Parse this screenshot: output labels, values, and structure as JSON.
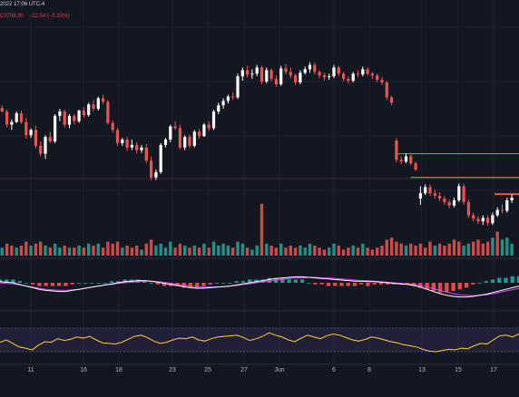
{
  "header": {
    "datetime": "2022 17:06 UTC-4",
    "price": "C3759.90",
    "change": "−12.54 (−0.33%)"
  },
  "colors": {
    "background": "#131722",
    "up": "#ffffff",
    "down": "#ef5350",
    "volume_up": "#26a69a",
    "volume_down": "#ef5350",
    "level_line": "#4caf50",
    "macd_line": "#ffffff",
    "signal_line": "#e040fb",
    "rsi_line": "#f9d423",
    "rsi_band": "#7e57c2"
  },
  "date_axis": [
    "11",
    "16",
    "18",
    "23",
    "25",
    "27",
    "Jun",
    "6",
    "8",
    "13",
    "15",
    "17"
  ],
  "chart_data": {
    "type": "candlestick",
    "title": "",
    "xlabel": "",
    "ylabel": "",
    "price_candles": [
      [
        3.0,
        3.9,
        2.6,
        3.7
      ],
      [
        3.7,
        4.0,
        3.2,
        3.3
      ],
      [
        3.3,
        3.5,
        1.5,
        1.8
      ],
      [
        1.8,
        2.4,
        1.2,
        2.1
      ],
      [
        2.1,
        3.3,
        2.0,
        3.1
      ],
      [
        3.1,
        3.4,
        1.9,
        2.1
      ],
      [
        2.1,
        2.6,
        0.2,
        0.6
      ],
      [
        0.6,
        1.4,
        0.3,
        1.2
      ],
      [
        1.2,
        1.7,
        -0.9,
        -0.6
      ],
      [
        -0.6,
        -0.1,
        -1.8,
        -1.5
      ],
      [
        -1.5,
        0.6,
        -2.1,
        0.4
      ],
      [
        0.4,
        1.0,
        -0.3,
        -0.1
      ],
      [
        -0.1,
        3.0,
        -0.3,
        2.8
      ],
      [
        2.8,
        3.6,
        2.2,
        3.3
      ],
      [
        3.3,
        3.5,
        1.5,
        1.8
      ],
      [
        1.8,
        3.0,
        1.4,
        2.8
      ],
      [
        2.8,
        3.0,
        1.8,
        2.2
      ],
      [
        2.2,
        3.5,
        2.0,
        3.4
      ],
      [
        3.4,
        3.8,
        2.6,
        2.9
      ],
      [
        2.9,
        4.3,
        2.7,
        4.1
      ],
      [
        4.1,
        4.6,
        3.3,
        3.6
      ],
      [
        3.6,
        5.0,
        3.4,
        4.8
      ],
      [
        4.8,
        5.2,
        4.1,
        4.4
      ],
      [
        4.4,
        4.6,
        1.8,
        2.0
      ],
      [
        2.0,
        2.3,
        0.9,
        1.2
      ],
      [
        1.2,
        1.5,
        -0.6,
        -0.3
      ],
      [
        -0.3,
        0.3,
        -0.6,
        0.1
      ],
      [
        0.1,
        0.4,
        -1.2,
        -0.8
      ],
      [
        -0.8,
        0.1,
        -1.1,
        -0.5
      ],
      [
        -0.5,
        -0.2,
        -1.5,
        -1.1
      ],
      [
        -1.1,
        -0.5,
        -1.4,
        -0.8
      ],
      [
        -0.8,
        -0.4,
        -2.6,
        -2.3
      ],
      [
        -2.3,
        -1.8,
        -4.5,
        -4.2
      ],
      [
        -4.2,
        -3.3,
        -4.5,
        -3.6
      ],
      [
        -3.6,
        -0.3,
        -3.8,
        -0.5
      ],
      [
        -0.5,
        0.3,
        -0.8,
        0.1
      ],
      [
        0.1,
        1.8,
        -0.2,
        1.6
      ],
      [
        1.6,
        2.2,
        1.2,
        1.4
      ],
      [
        1.4,
        1.8,
        -1.0,
        -0.8
      ],
      [
        -0.8,
        0.6,
        -1.1,
        0.4
      ],
      [
        0.4,
        0.7,
        -0.9,
        -0.6
      ],
      [
        -0.6,
        1.2,
        -0.8,
        1.0
      ],
      [
        1.0,
        1.3,
        0.2,
        0.5
      ],
      [
        0.5,
        2.0,
        0.4,
        1.8
      ],
      [
        1.8,
        2.2,
        1.1,
        1.4
      ],
      [
        1.4,
        3.5,
        1.2,
        3.3
      ],
      [
        3.3,
        4.3,
        3.0,
        4.0
      ],
      [
        4.0,
        4.8,
        3.6,
        4.5
      ],
      [
        4.5,
        5.2,
        4.2,
        5.0
      ],
      [
        5.0,
        5.5,
        4.6,
        4.9
      ],
      [
        4.9,
        7.6,
        4.7,
        7.3
      ],
      [
        7.3,
        8.3,
        6.8,
        8.0
      ],
      [
        8.0,
        8.5,
        7.2,
        7.5
      ],
      [
        7.5,
        8.1,
        7.0,
        7.6
      ],
      [
        7.6,
        8.6,
        7.3,
        8.3
      ],
      [
        8.3,
        8.5,
        6.4,
        6.7
      ],
      [
        6.7,
        8.3,
        6.5,
        8.0
      ],
      [
        8.0,
        8.2,
        6.7,
        7.0
      ],
      [
        7.0,
        7.4,
        6.1,
        6.4
      ],
      [
        6.4,
        8.5,
        6.2,
        8.2
      ],
      [
        8.2,
        8.7,
        7.5,
        7.8
      ],
      [
        7.8,
        8.3,
        7.1,
        7.4
      ],
      [
        7.4,
        7.6,
        6.3,
        6.6
      ],
      [
        6.6,
        8.0,
        6.4,
        7.7
      ],
      [
        7.7,
        8.4,
        7.5,
        8.1
      ],
      [
        8.1,
        8.9,
        7.7,
        8.6
      ],
      [
        8.6,
        8.9,
        7.5,
        7.8
      ],
      [
        7.8,
        8.0,
        7.1,
        7.4
      ],
      [
        7.4,
        7.7,
        6.8,
        7.2
      ],
      [
        7.2,
        7.6,
        6.9,
        7.3
      ],
      [
        7.3,
        8.6,
        7.1,
        8.3
      ],
      [
        8.3,
        8.5,
        7.3,
        7.6
      ],
      [
        7.6,
        7.8,
        6.7,
        7.0
      ],
      [
        7.0,
        7.3,
        6.5,
        6.8
      ],
      [
        6.8,
        7.8,
        6.6,
        7.6
      ],
      [
        7.6,
        8.0,
        7.2,
        7.5
      ],
      [
        7.5,
        8.4,
        7.3,
        8.1
      ],
      [
        8.1,
        8.3,
        7.4,
        7.6
      ],
      [
        7.6,
        7.8,
        7.0,
        7.4
      ],
      [
        7.4,
        7.6,
        6.6,
        6.9
      ],
      [
        6.9,
        7.2,
        6.3,
        6.6
      ],
      [
        6.6,
        6.8,
        4.6,
        4.9
      ],
      [
        4.9,
        5.1,
        4.0,
        4.3
      ],
      [
        0.0,
        0.3,
        -2.5,
        -2.2
      ],
      [
        -2.2,
        -1.8,
        -2.7,
        -2.4
      ],
      [
        -2.4,
        -1.5,
        -2.6,
        -1.8
      ],
      [
        -1.8,
        -1.5,
        -2.8,
        -2.6
      ],
      [
        -2.6,
        -2.4,
        -3.5,
        -3.3
      ],
      [
        -6.6,
        -5.2,
        -7.3,
        -6.0
      ],
      [
        -6.0,
        -5.0,
        -6.2,
        -5.3
      ],
      [
        -5.3,
        -5.0,
        -6.3,
        -6.0
      ],
      [
        -6.0,
        -5.6,
        -6.6,
        -6.3
      ],
      [
        -6.3,
        -5.9,
        -6.9,
        -6.6
      ],
      [
        -6.6,
        -6.3,
        -7.3,
        -7.0
      ],
      [
        -7.0,
        -6.7,
        -7.7,
        -7.4
      ],
      [
        -7.4,
        -6.5,
        -7.6,
        -6.8
      ],
      [
        -6.8,
        -4.9,
        -7.0,
        -5.2
      ],
      [
        -5.2,
        -4.9,
        -7.3,
        -7.0
      ],
      [
        -7.0,
        -6.7,
        -8.8,
        -8.5
      ],
      [
        -8.5,
        -8.2,
        -9.2,
        -8.9
      ],
      [
        -8.9,
        -8.6,
        -9.5,
        -9.2
      ],
      [
        -9.2,
        -8.5,
        -9.6,
        -8.8
      ],
      [
        -8.8,
        -8.5,
        -9.7,
        -9.4
      ],
      [
        -9.4,
        -8.2,
        -9.6,
        -8.5
      ],
      [
        -8.5,
        -7.6,
        -8.7,
        -7.9
      ],
      [
        -7.9,
        -7.3,
        -8.3,
        -8.0
      ],
      [
        -8.0,
        -6.5,
        -8.2,
        -6.8
      ],
      [
        -6.8,
        -6.1,
        -7.1,
        -6.5
      ]
    ],
    "levels": [
      {
        "from_bar": 83,
        "to_bar": 107,
        "price": -1.5
      },
      {
        "from_bar": 86,
        "to_bar": 107,
        "price": -4.2
      }
    ],
    "volume": [
      [
        0.3,
        1
      ],
      [
        0.4,
        1
      ],
      [
        0.6,
        0
      ],
      [
        0.5,
        0
      ],
      [
        0.4,
        1
      ],
      [
        0.5,
        0
      ],
      [
        0.7,
        0
      ],
      [
        0.5,
        1
      ],
      [
        0.6,
        0
      ],
      [
        0.7,
        0
      ],
      [
        0.5,
        1
      ],
      [
        0.4,
        0
      ],
      [
        0.6,
        1
      ],
      [
        0.4,
        1
      ],
      [
        0.5,
        0
      ],
      [
        0.4,
        1
      ],
      [
        0.4,
        0
      ],
      [
        0.5,
        1
      ],
      [
        0.4,
        0
      ],
      [
        0.6,
        1
      ],
      [
        0.5,
        0
      ],
      [
        0.6,
        1
      ],
      [
        0.4,
        0
      ],
      [
        0.7,
        0
      ],
      [
        0.6,
        0
      ],
      [
        0.7,
        0
      ],
      [
        0.4,
        1
      ],
      [
        0.5,
        0
      ],
      [
        0.4,
        0
      ],
      [
        0.5,
        0
      ],
      [
        0.3,
        1
      ],
      [
        0.6,
        0
      ],
      [
        0.8,
        0
      ],
      [
        0.5,
        1
      ],
      [
        0.6,
        1
      ],
      [
        0.4,
        1
      ],
      [
        0.7,
        1
      ],
      [
        0.4,
        0
      ],
      [
        0.6,
        0
      ],
      [
        0.5,
        1
      ],
      [
        0.4,
        0
      ],
      [
        0.5,
        1
      ],
      [
        0.4,
        0
      ],
      [
        0.6,
        1
      ],
      [
        0.4,
        0
      ],
      [
        0.7,
        1
      ],
      [
        0.5,
        1
      ],
      [
        0.6,
        1
      ],
      [
        0.5,
        1
      ],
      [
        0.4,
        0
      ],
      [
        0.7,
        1
      ],
      [
        0.6,
        1
      ],
      [
        0.4,
        0
      ],
      [
        0.3,
        1
      ],
      [
        0.5,
        1
      ],
      [
        2.6,
        0
      ],
      [
        0.6,
        1
      ],
      [
        0.5,
        0
      ],
      [
        0.4,
        0
      ],
      [
        0.6,
        1
      ],
      [
        0.4,
        0
      ],
      [
        0.5,
        0
      ],
      [
        0.4,
        0
      ],
      [
        0.5,
        1
      ],
      [
        0.4,
        1
      ],
      [
        0.6,
        1
      ],
      [
        0.5,
        0
      ],
      [
        0.4,
        0
      ],
      [
        0.3,
        0
      ],
      [
        0.4,
        1
      ],
      [
        0.6,
        1
      ],
      [
        0.5,
        0
      ],
      [
        0.3,
        0
      ],
      [
        0.4,
        0
      ],
      [
        0.5,
        1
      ],
      [
        0.4,
        0
      ],
      [
        0.6,
        1
      ],
      [
        0.4,
        0
      ],
      [
        0.3,
        0
      ],
      [
        0.4,
        0
      ],
      [
        0.5,
        0
      ],
      [
        0.8,
        0
      ],
      [
        0.9,
        0
      ],
      [
        0.7,
        0
      ],
      [
        0.6,
        0
      ],
      [
        0.5,
        1
      ],
      [
        0.6,
        0
      ],
      [
        0.5,
        0
      ],
      [
        0.6,
        0
      ],
      [
        0.4,
        0
      ],
      [
        0.7,
        0
      ],
      [
        0.5,
        1
      ],
      [
        0.6,
        0
      ],
      [
        0.5,
        0
      ],
      [
        0.6,
        0
      ],
      [
        0.8,
        0
      ],
      [
        0.7,
        0
      ],
      [
        0.5,
        1
      ],
      [
        0.6,
        1
      ],
      [
        0.7,
        0
      ],
      [
        0.8,
        0
      ],
      [
        0.6,
        0
      ],
      [
        0.7,
        0
      ],
      [
        0.9,
        1
      ],
      [
        1.2,
        0
      ],
      [
        0.8,
        1
      ],
      [
        0.9,
        1
      ],
      [
        0.6,
        1
      ]
    ],
    "macd": [
      0.2,
      0.1,
      0.0,
      -0.3,
      -0.6,
      -0.9,
      -1.2,
      -1.4,
      -1.5,
      -1.6,
      -1.6,
      -1.4,
      -1.2,
      -1.0,
      -0.8,
      -0.6,
      -0.4,
      -0.2,
      0.0,
      0.2,
      0.3,
      0.4,
      0.4,
      0.3,
      0.1,
      -0.1,
      -0.3,
      -0.5,
      -0.7,
      -0.9,
      -1.0,
      -1.0,
      -0.9,
      -0.8,
      -0.7,
      -0.6,
      -0.4,
      -0.2,
      0.0,
      0.2,
      0.4,
      0.6,
      0.8,
      0.9,
      1.0,
      1.1,
      1.1,
      1.0,
      0.9,
      0.8,
      0.7,
      0.6,
      0.5,
      0.4,
      0.3,
      0.3,
      0.2,
      0.2,
      0.1,
      0.0,
      -0.1,
      -0.2,
      -0.3,
      -0.5,
      -0.8,
      -1.2,
      -1.6,
      -2.0,
      -2.3,
      -2.5,
      -2.6,
      -2.6,
      -2.5,
      -2.3,
      -2.1,
      -1.8,
      -1.5,
      -1.2,
      -0.9,
      -0.6
    ],
    "signal": [
      0.0,
      -0.1,
      -0.2,
      -0.4,
      -0.6,
      -0.8,
      -1.0,
      -1.2,
      -1.3,
      -1.4,
      -1.4,
      -1.3,
      -1.2,
      -1.0,
      -0.8,
      -0.6,
      -0.4,
      -0.3,
      -0.1,
      0.0,
      0.1,
      0.2,
      0.3,
      0.3,
      0.2,
      0.1,
      -0.1,
      -0.3,
      -0.4,
      -0.6,
      -0.7,
      -0.8,
      -0.8,
      -0.8,
      -0.7,
      -0.6,
      -0.5,
      -0.3,
      -0.2,
      0.0,
      0.2,
      0.3,
      0.5,
      0.6,
      0.8,
      0.9,
      0.9,
      1.0,
      1.0,
      0.9,
      0.9,
      0.8,
      0.7,
      0.6,
      0.5,
      0.4,
      0.4,
      0.3,
      0.2,
      0.1,
      0.0,
      -0.1,
      -0.2,
      -0.3,
      -0.5,
      -0.8,
      -1.1,
      -1.4,
      -1.7,
      -2.0,
      -2.2,
      -2.3,
      -2.4,
      -2.3,
      -2.2,
      -2.0,
      -1.8,
      -1.5,
      -1.3,
      -1.0
    ],
    "rsi": [
      46,
      50,
      44,
      38,
      36,
      33,
      41,
      47,
      46,
      52,
      49,
      51,
      55,
      53,
      56,
      50,
      45,
      44,
      43,
      46,
      51,
      56,
      58,
      54,
      48,
      44,
      46,
      50,
      53,
      52,
      55,
      50,
      48,
      52,
      55,
      56,
      57,
      58,
      54,
      49,
      52,
      56,
      62,
      58,
      55,
      50,
      47,
      53,
      58,
      55,
      52,
      57,
      60,
      58,
      54,
      50,
      48,
      51,
      55,
      53,
      50,
      47,
      45,
      42,
      40,
      38,
      34,
      31,
      30,
      32,
      34,
      33,
      36,
      35,
      40,
      44,
      43,
      50,
      57,
      58,
      55,
      60
    ]
  }
}
